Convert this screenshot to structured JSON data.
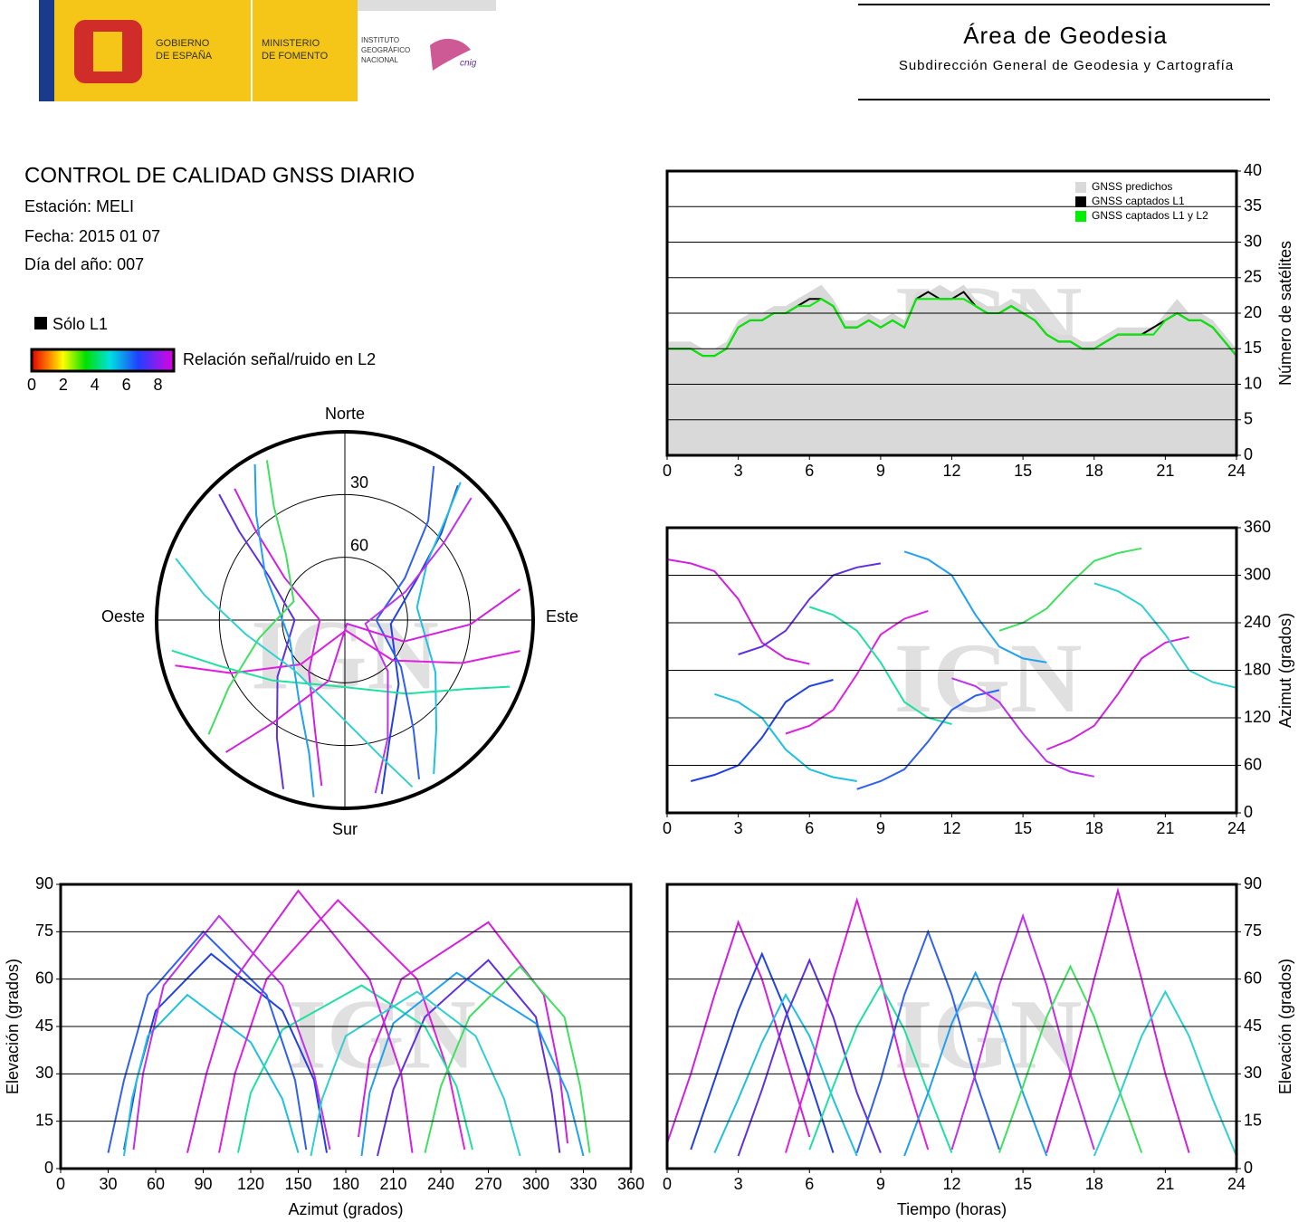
{
  "header": {
    "gobierno": [
      "GOBIERNO",
      "DE ESPAÑA"
    ],
    "ministerio": [
      "MINISTERIO",
      "DE FOMENTO"
    ],
    "instituto": [
      "INSTITUTO",
      "GEOGRÁFICO",
      "NACIONAL"
    ],
    "cnig": "cnig",
    "title": "Área de Geodesia",
    "subtitle": "Subdirección General de Geodesia y Cartografía"
  },
  "report": {
    "title": "CONTROL DE CALIDAD GNSS DIARIO",
    "station": "Estación: MELI",
    "date": "Fecha: 2015 01 07",
    "doy": "Día del año: 007",
    "l1_legend": "Sólo L1",
    "snr_legend": "Relación señal/ruido en L2",
    "snr_lim": [
      0,
      9
    ],
    "snr_ticks": [
      0,
      2,
      4,
      6,
      8
    ]
  },
  "chart_data": [
    {
      "type": "line",
      "watermark": "IGN",
      "ylabel": "Número de satélites",
      "y_axis_side": "right",
      "grid": true,
      "legend": "top-right",
      "x": [
        0,
        0.5,
        1,
        1.5,
        2,
        2.5,
        3,
        3.5,
        4,
        4.5,
        5,
        5.5,
        6,
        6.5,
        7,
        7.5,
        8,
        8.5,
        9,
        9.5,
        10,
        10.5,
        11,
        11.5,
        12,
        12.5,
        13,
        13.5,
        14,
        14.5,
        15,
        15.5,
        16,
        16.5,
        17,
        17.5,
        18,
        18.5,
        19,
        19.5,
        20,
        20.5,
        21,
        21.5,
        22,
        22.5,
        23,
        23.5,
        24
      ],
      "series": [
        {
          "name": "GNSS predichos",
          "color": "#d9d9d9",
          "fill": true,
          "values": [
            16,
            16,
            16,
            15,
            15,
            16,
            19,
            20,
            20,
            21,
            21,
            22,
            23,
            24,
            22,
            19,
            19,
            20,
            19,
            20,
            19,
            23,
            23,
            24,
            23,
            24,
            22,
            21,
            21,
            22,
            21,
            20,
            18,
            17,
            17,
            16,
            16,
            17,
            18,
            18,
            18,
            18,
            20,
            22,
            20,
            20,
            19,
            17,
            15
          ]
        },
        {
          "name": "GNSS captados L1",
          "color": "#000000",
          "fill": false,
          "values": [
            15,
            15,
            15,
            14,
            14,
            15,
            18,
            19,
            19,
            20,
            20,
            21,
            22,
            22,
            21,
            18,
            18,
            19,
            18,
            19,
            18,
            22,
            23,
            22,
            22,
            23,
            21,
            20,
            20,
            21,
            20,
            19,
            17,
            16,
            16,
            15,
            15,
            16,
            17,
            17,
            17,
            18,
            19,
            20,
            19,
            19,
            18,
            16,
            14
          ]
        },
        {
          "name": "GNSS captados L1 y L2",
          "color": "#00ee00",
          "fill": false,
          "values": [
            15,
            15,
            15,
            14,
            14,
            15,
            18,
            19,
            19,
            20,
            20,
            21,
            21,
            22,
            21,
            18,
            18,
            19,
            18,
            19,
            18,
            22,
            22,
            22,
            22,
            22,
            21,
            20,
            20,
            21,
            20,
            19,
            17,
            16,
            16,
            15,
            15,
            16,
            17,
            17,
            17,
            17,
            19,
            20,
            19,
            19,
            18,
            16,
            14
          ]
        }
      ],
      "xlim": [
        0,
        24
      ],
      "xticks": [
        0,
        3,
        6,
        9,
        12,
        15,
        18,
        21,
        24
      ],
      "ylim": [
        0,
        40
      ],
      "yticks": [
        0,
        5,
        10,
        15,
        20,
        25,
        30,
        35,
        40
      ]
    },
    {
      "type": "polar",
      "watermark": "IGN",
      "directions": {
        "north": "Norte",
        "east": "Este",
        "south": "Sur",
        "west": "Oeste"
      },
      "rlim": [
        0,
        90
      ],
      "rticks": [
        30,
        60
      ],
      "series": [
        {
          "color": "#d020e0",
          "time": [
            0,
            1,
            2,
            3,
            4,
            5,
            6
          ],
          "azimuth": [
            320,
            315,
            305,
            270,
            215,
            195,
            188
          ],
          "elevation": [
            8,
            30,
            55,
            78,
            60,
            35,
            10
          ]
        },
        {
          "color": "#2040e0",
          "time": [
            1,
            2,
            3,
            4,
            5,
            6,
            7
          ],
          "azimuth": [
            40,
            48,
            60,
            95,
            140,
            160,
            168
          ],
          "elevation": [
            6,
            28,
            50,
            68,
            50,
            28,
            5
          ]
        },
        {
          "color": "#20c0e0",
          "time": [
            2,
            3,
            4,
            5,
            6,
            7,
            8
          ],
          "azimuth": [
            150,
            140,
            120,
            80,
            55,
            45,
            40
          ],
          "elevation": [
            5,
            22,
            40,
            55,
            42,
            22,
            4
          ]
        },
        {
          "color": "#6030e0",
          "time": [
            3,
            4,
            5,
            6,
            7,
            8,
            9
          ],
          "azimuth": [
            200,
            210,
            230,
            270,
            300,
            310,
            315
          ],
          "elevation": [
            4,
            25,
            48,
            66,
            48,
            24,
            5
          ]
        },
        {
          "color": "#e020e0",
          "time": [
            5,
            6,
            7,
            8,
            9,
            10,
            11
          ],
          "azimuth": [
            100,
            110,
            130,
            175,
            225,
            245,
            255
          ],
          "elevation": [
            5,
            30,
            60,
            85,
            60,
            30,
            6
          ]
        },
        {
          "color": "#20e0a0",
          "time": [
            6,
            7,
            8,
            9,
            10,
            11,
            12
          ],
          "azimuth": [
            260,
            250,
            230,
            190,
            140,
            120,
            112
          ],
          "elevation": [
            6,
            26,
            45,
            58,
            44,
            24,
            5
          ]
        },
        {
          "color": "#3060f0",
          "time": [
            8,
            9,
            10,
            11,
            12,
            13,
            14
          ],
          "azimuth": [
            30,
            40,
            55,
            90,
            130,
            148,
            155
          ],
          "elevation": [
            5,
            28,
            55,
            75,
            55,
            28,
            6
          ]
        },
        {
          "color": "#20a0f0",
          "time": [
            10,
            11,
            12,
            13,
            14,
            15,
            16
          ],
          "azimuth": [
            330,
            320,
            300,
            250,
            210,
            195,
            190
          ],
          "elevation": [
            4,
            24,
            46,
            62,
            46,
            24,
            4
          ]
        },
        {
          "color": "#c030f0",
          "time": [
            12,
            13,
            14,
            15,
            16,
            17,
            18
          ],
          "azimuth": [
            170,
            160,
            140,
            100,
            65,
            52,
            46
          ],
          "elevation": [
            6,
            30,
            58,
            80,
            58,
            30,
            6
          ]
        },
        {
          "color": "#40e060",
          "time": [
            14,
            15,
            16,
            17,
            18,
            19,
            20
          ],
          "azimuth": [
            230,
            240,
            258,
            290,
            318,
            328,
            334
          ],
          "elevation": [
            5,
            26,
            48,
            64,
            48,
            26,
            5
          ]
        },
        {
          "color": "#d020e0",
          "time": [
            16,
            17,
            18,
            19,
            20,
            21,
            22
          ],
          "azimuth": [
            80,
            92,
            110,
            150,
            195,
            215,
            222
          ],
          "elevation": [
            5,
            30,
            60,
            88,
            60,
            30,
            5
          ]
        },
        {
          "color": "#30d0d0",
          "time": [
            18,
            19,
            20,
            21,
            22,
            23,
            24
          ],
          "azimuth": [
            290,
            280,
            262,
            225,
            180,
            165,
            158
          ],
          "elevation": [
            4,
            22,
            42,
            56,
            42,
            22,
            4
          ]
        }
      ]
    },
    {
      "type": "track",
      "watermark": "IGN",
      "x_field": "time",
      "y_field": "azimuth",
      "ylabel": "Azimut (grados)",
      "y_axis_side": "right",
      "grid": true,
      "xlim": [
        0,
        24
      ],
      "xticks": [
        0,
        3,
        6,
        9,
        12,
        15,
        18,
        21,
        24
      ],
      "ylim": [
        0,
        360
      ],
      "yticks": [
        0,
        60,
        120,
        180,
        240,
        300,
        360
      ]
    },
    {
      "type": "track",
      "watermark": "IGN",
      "x_field": "azimuth",
      "y_field": "elevation",
      "xlabel": "Azimut (grados)",
      "ylabel": "Elevación (grados)",
      "y_axis_side": "left",
      "grid": true,
      "xlim": [
        0,
        360
      ],
      "xticks": [
        0,
        30,
        60,
        90,
        120,
        150,
        180,
        210,
        240,
        270,
        300,
        330,
        360
      ],
      "ylim": [
        0,
        90
      ],
      "yticks": [
        0,
        15,
        30,
        45,
        60,
        75,
        90
      ]
    },
    {
      "type": "track",
      "watermark": "IGN",
      "x_field": "time",
      "y_field": "elevation",
      "xlabel": "Tiempo (horas)",
      "ylabel": "Elevación (grados)",
      "y_axis_side": "right",
      "grid": true,
      "xlim": [
        0,
        24
      ],
      "xticks": [
        0,
        3,
        6,
        9,
        12,
        15,
        18,
        21,
        24
      ],
      "ylim": [
        0,
        90
      ],
      "yticks": [
        0,
        15,
        30,
        45,
        60,
        75,
        90
      ]
    }
  ]
}
